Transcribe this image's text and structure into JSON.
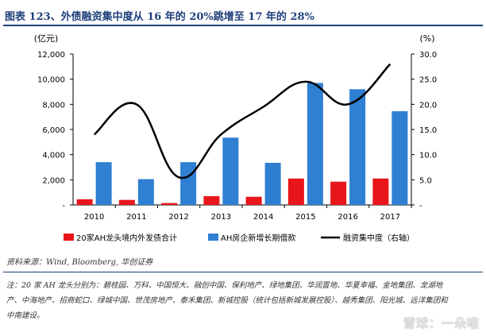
{
  "title": "图表 123、外债融资集中度从 16 年的 20%跳增至 17 年的 28%",
  "source": "资料来源：Wind, Bloomberg, 华创证券",
  "note": "注：20 家 AH 龙头分别为：碧桂园、万科、中国恒大、融创中国、保利地产、绿地集团、华润置地、华夏幸福、金地集团、龙湖地产、中海地产、招商蛇口、绿城中国、世茂房地产、泰禾集团、新城控股（统计包括新城发展控股）、越秀集团、阳光城、远洋集团和中南建设。",
  "watermark": "雪球：一朵喵",
  "colors": {
    "red": "#e8161a",
    "blue": "#2f7fd2",
    "line": "#000000",
    "title": "#1f3f7a"
  },
  "chart_data": {
    "type": "bar",
    "categories": [
      "2010",
      "2011",
      "2012",
      "2013",
      "2014",
      "2015",
      "2016",
      "2017"
    ],
    "left_axis": {
      "unit": "(亿元)",
      "ylim": [
        0,
        12000
      ],
      "ticks": [
        "-",
        "2,000",
        "4,000",
        "6,000",
        "8,000",
        "10,000",
        "12,000"
      ]
    },
    "right_axis": {
      "unit": "(%)",
      "ylim": [
        0,
        30
      ],
      "ticks": [
        "-",
        "5.0",
        "10.0",
        "15.0",
        "20.0",
        "25.0",
        "30.0"
      ]
    },
    "series": [
      {
        "name": "20家AH龙头境内外发债合计",
        "type": "bar",
        "axis": "left",
        "color": "#e8161a",
        "values": [
          450,
          400,
          150,
          700,
          650,
          2100,
          1850,
          2100
        ]
      },
      {
        "name": "AH房企新增长期借款",
        "type": "bar",
        "axis": "left",
        "color": "#2f7fd2",
        "values": [
          3400,
          2050,
          3400,
          5350,
          3350,
          9700,
          9200,
          7450
        ]
      },
      {
        "name": "融资集中度（右轴）",
        "type": "line",
        "axis": "right",
        "color": "#000000",
        "values": [
          14,
          20,
          5.5,
          14,
          19.5,
          24.5,
          20,
          28
        ]
      }
    ],
    "grid": false,
    "legend": "bottom"
  }
}
